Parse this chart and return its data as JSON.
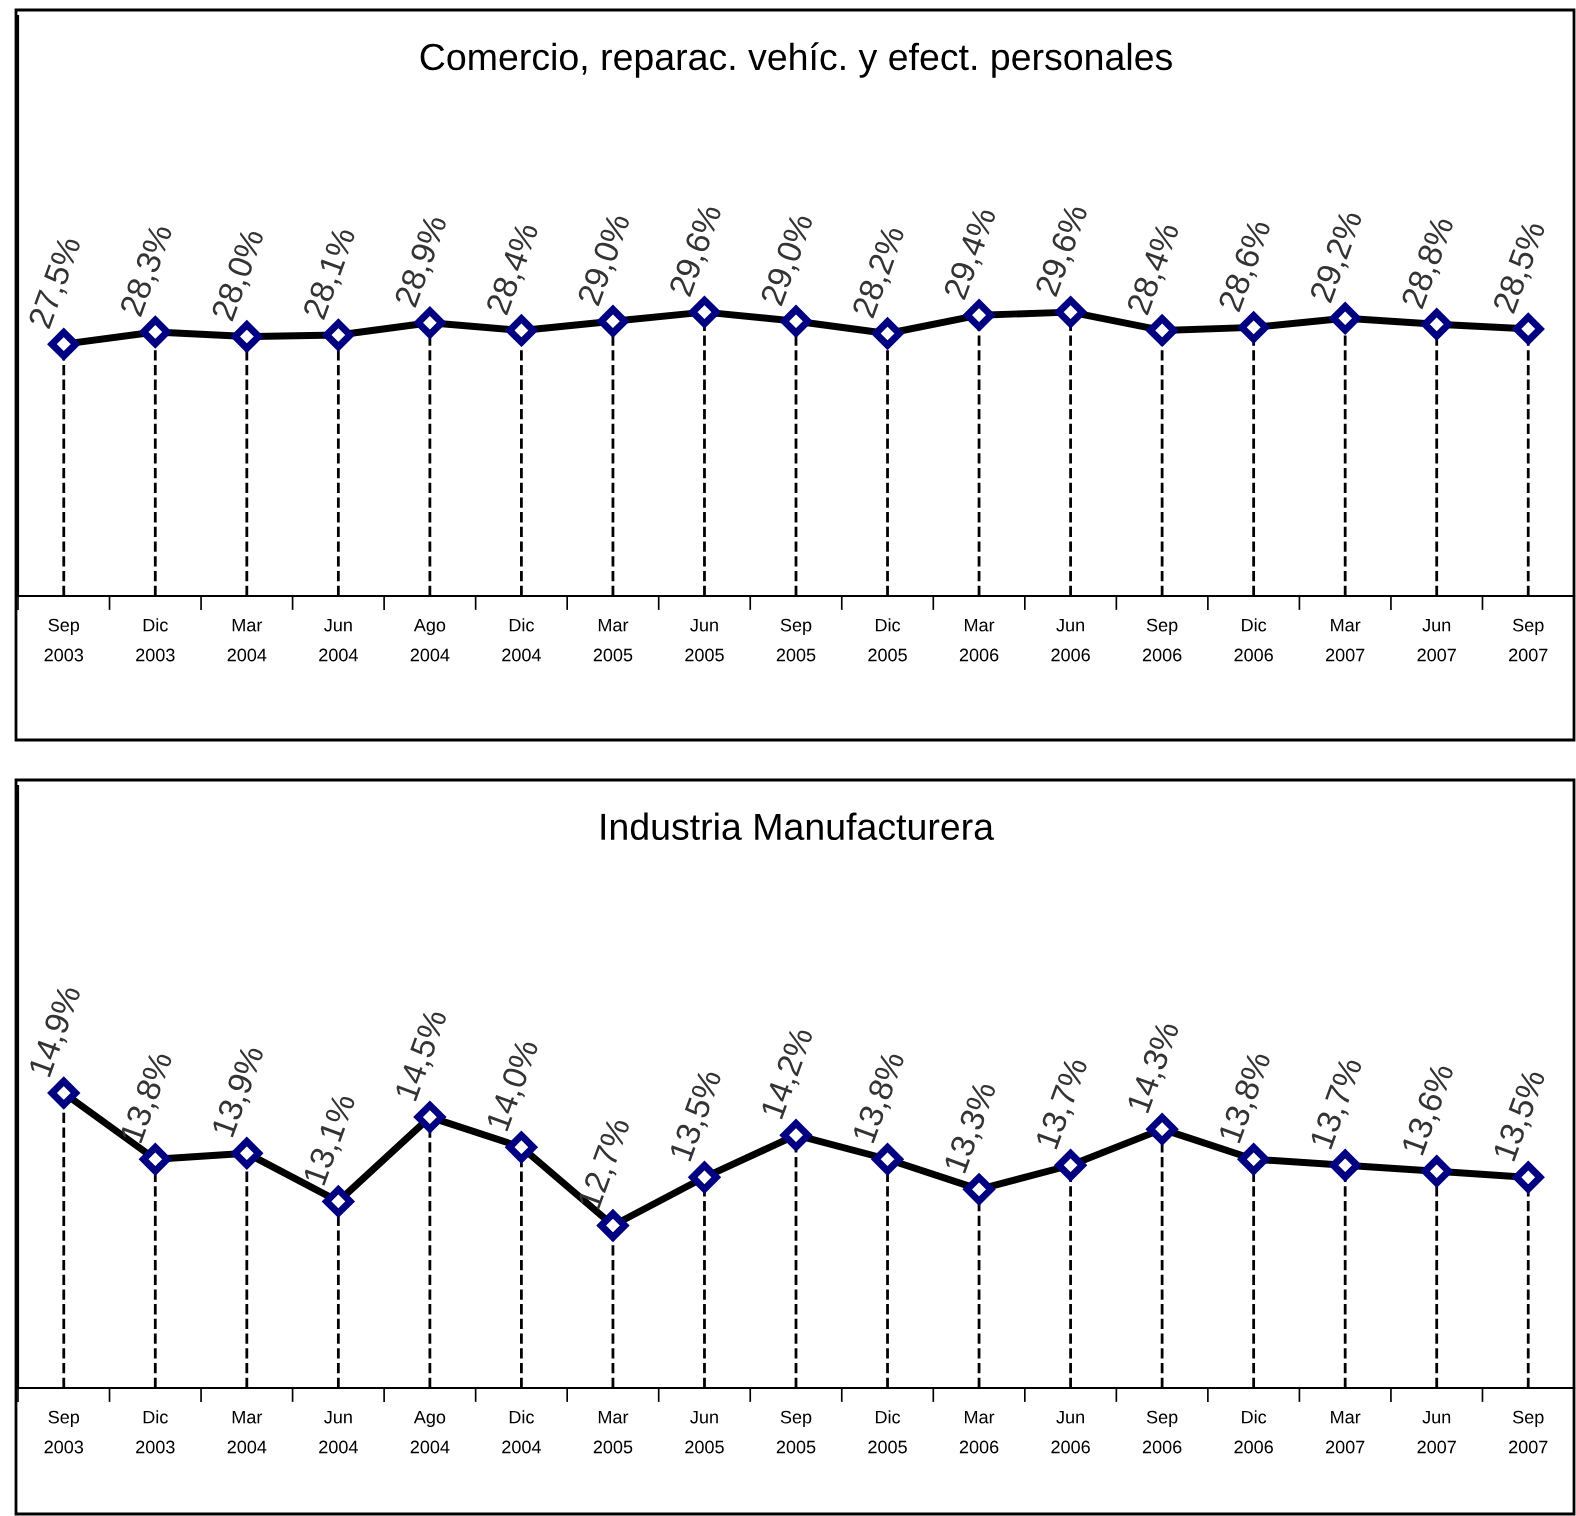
{
  "chart_data": [
    {
      "type": "line",
      "title": "Comercio, reparac. vehíc. y efect. personales",
      "categories": [
        "Sep\n2003",
        "Dic\n2003",
        "Mar\n2004",
        "Jun\n2004",
        "Ago\n2004",
        "Dic\n2004",
        "Mar\n2005",
        "Jun\n2005",
        "Sep\n2005",
        "Dic\n2005",
        "Mar\n2006",
        "Jun\n2006",
        "Sep\n2006",
        "Dic\n2006",
        "Mar\n2007",
        "Jun\n2007",
        "Sep\n2007"
      ],
      "series": [
        {
          "color": "#000000",
          "values": [
            27.5,
            28.3,
            28.0,
            28.1,
            28.9,
            28.4,
            29.0,
            29.6,
            29.0,
            28.2,
            29.4,
            29.6,
            28.4,
            28.6,
            29.2,
            28.8,
            28.5
          ],
          "value_labels": [
            "27,5%",
            "28,3%",
            "28,0%",
            "28,1%",
            "28,9%",
            "28,4%",
            "29,0%",
            "29,6%",
            "29,0%",
            "28,2%",
            "29,4%",
            "29,6%",
            "28,4%",
            "28,6%",
            "29,2%",
            "28,8%",
            "28,5%"
          ]
        }
      ],
      "ylim": [
        11,
        49
      ],
      "tick_labels": "x",
      "marker": "diamond",
      "line_style": "solid",
      "grid": false,
      "legend": false
    },
    {
      "type": "line",
      "title": "Industria Manufacturera",
      "categories": [
        "Sep\n2003",
        "Dic\n2003",
        "Mar\n2004",
        "Jun\n2004",
        "Ago\n2004",
        "Dic\n2004",
        "Mar\n2005",
        "Jun\n2005",
        "Sep\n2005",
        "Dic\n2005",
        "Mar\n2006",
        "Jun\n2006",
        "Sep\n2006",
        "Dic\n2006",
        "Mar\n2007",
        "Jun\n2007",
        "Sep\n2007"
      ],
      "series": [
        {
          "color": "#000000",
          "values": [
            14.9,
            13.8,
            13.9,
            13.1,
            14.5,
            14.0,
            12.7,
            13.5,
            14.2,
            13.8,
            13.3,
            13.7,
            14.3,
            13.8,
            13.7,
            13.6,
            13.5
          ],
          "value_labels": [
            "14,9%",
            "13,8%",
            "13,9%",
            "13,1%",
            "14,5%",
            "14,0%",
            "12,7%",
            "13,5%",
            "14,2%",
            "13,8%",
            "13,3%",
            "13,7%",
            "14,3%",
            "13,8%",
            "13,7%",
            "13,6%",
            "13,5%"
          ]
        }
      ],
      "ylim": [
        10,
        20
      ],
      "tick_labels": "x",
      "marker": "diamond",
      "line_style": "solid",
      "grid": false,
      "legend": false
    }
  ]
}
